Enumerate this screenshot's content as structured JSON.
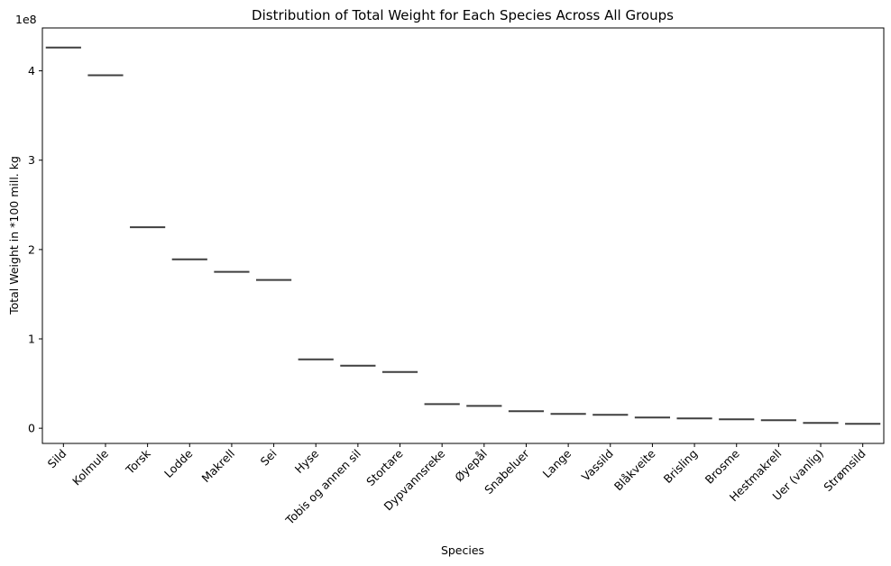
{
  "chart_data": {
    "type": "box",
    "title": "Distribution of Total Weight for Each Species Across All Groups",
    "xlabel": "Species",
    "ylabel": "Total Weight in *100 mill. kg",
    "y_offset_label": "1e8",
    "y_multiplier": 100000000,
    "ylim": [
      -0.17,
      4.48
    ],
    "yticks": [
      0,
      1,
      2,
      3,
      4
    ],
    "ytick_labels": [
      "0",
      "1",
      "2",
      "3",
      "4"
    ],
    "grid": false,
    "line_color": "#3f3f3f",
    "categories": [
      "Sild",
      "Kolmule",
      "Torsk",
      "Lodde",
      "Makrell",
      "Sei",
      "Hyse",
      "Tobis og annen sil",
      "Stortare",
      "Dypvannsreke",
      "Øyepål",
      "Snabeluer",
      "Lange",
      "Vassild",
      "Blåkveite",
      "Brisling",
      "Brosme",
      "Hestmakrell",
      "Uer (vanlig)",
      "Strømsild"
    ],
    "values": [
      4.26,
      3.95,
      2.25,
      1.89,
      1.75,
      1.66,
      0.77,
      0.7,
      0.63,
      0.27,
      0.25,
      0.19,
      0.16,
      0.15,
      0.12,
      0.11,
      0.1,
      0.09,
      0.06,
      0.05
    ]
  }
}
